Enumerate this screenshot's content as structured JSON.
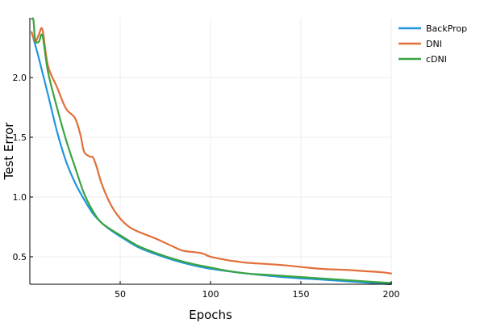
{
  "chart_data": {
    "type": "line",
    "title": "",
    "xlabel": "Epochs",
    "ylabel": "Test Error",
    "xlim": [
      0,
      200
    ],
    "ylim": [
      0.27,
      2.5
    ],
    "xticks": [
      50,
      100,
      150,
      200
    ],
    "yticks": [
      0.5,
      1.0,
      1.5,
      2.0
    ],
    "xtick_labels": [
      "50",
      "100",
      "150",
      "200"
    ],
    "ytick_labels": [
      "0.5",
      "1.0",
      "1.5",
      "2.0"
    ],
    "grid": true,
    "legend_position": "top-right",
    "series": [
      {
        "name": "BackProp",
        "color": "#1f96dc",
        "x": [
          1,
          5,
          10,
          15,
          20,
          25,
          30,
          35,
          40,
          45,
          50,
          60,
          70,
          80,
          90,
          100,
          120,
          140,
          160,
          180,
          200
        ],
        "y": [
          2.38,
          2.16,
          1.86,
          1.55,
          1.3,
          1.12,
          0.98,
          0.86,
          0.78,
          0.72,
          0.67,
          0.58,
          0.52,
          0.47,
          0.43,
          0.4,
          0.36,
          0.33,
          0.31,
          0.29,
          0.27
        ]
      },
      {
        "name": "DNI",
        "color": "#e26e3a",
        "x": [
          1,
          3,
          5,
          7,
          10,
          15,
          20,
          25,
          28,
          30,
          33,
          35,
          37,
          40,
          45,
          50,
          55,
          60,
          70,
          80,
          85,
          95,
          100,
          110,
          115,
          120,
          140,
          160,
          175,
          185,
          195,
          200
        ],
        "y": [
          2.38,
          2.3,
          2.36,
          2.4,
          2.1,
          1.92,
          1.74,
          1.66,
          1.52,
          1.38,
          1.34,
          1.33,
          1.25,
          1.1,
          0.93,
          0.82,
          0.75,
          0.71,
          0.65,
          0.58,
          0.55,
          0.53,
          0.5,
          0.47,
          0.46,
          0.45,
          0.43,
          0.4,
          0.39,
          0.38,
          0.37,
          0.36
        ]
      },
      {
        "name": "cDNI",
        "color": "#3ba340",
        "x": [
          1,
          2,
          3,
          5,
          7,
          10,
          15,
          20,
          25,
          30,
          35,
          40,
          50,
          60,
          70,
          80,
          90,
          100,
          110,
          120,
          130,
          140,
          150,
          160,
          170,
          180,
          190,
          200
        ],
        "y": [
          2.49,
          2.48,
          2.31,
          2.3,
          2.35,
          2.05,
          1.75,
          1.48,
          1.25,
          1.03,
          0.88,
          0.78,
          0.68,
          0.59,
          0.53,
          0.48,
          0.44,
          0.41,
          0.38,
          0.36,
          0.35,
          0.34,
          0.33,
          0.32,
          0.31,
          0.3,
          0.29,
          0.28
        ]
      }
    ]
  }
}
